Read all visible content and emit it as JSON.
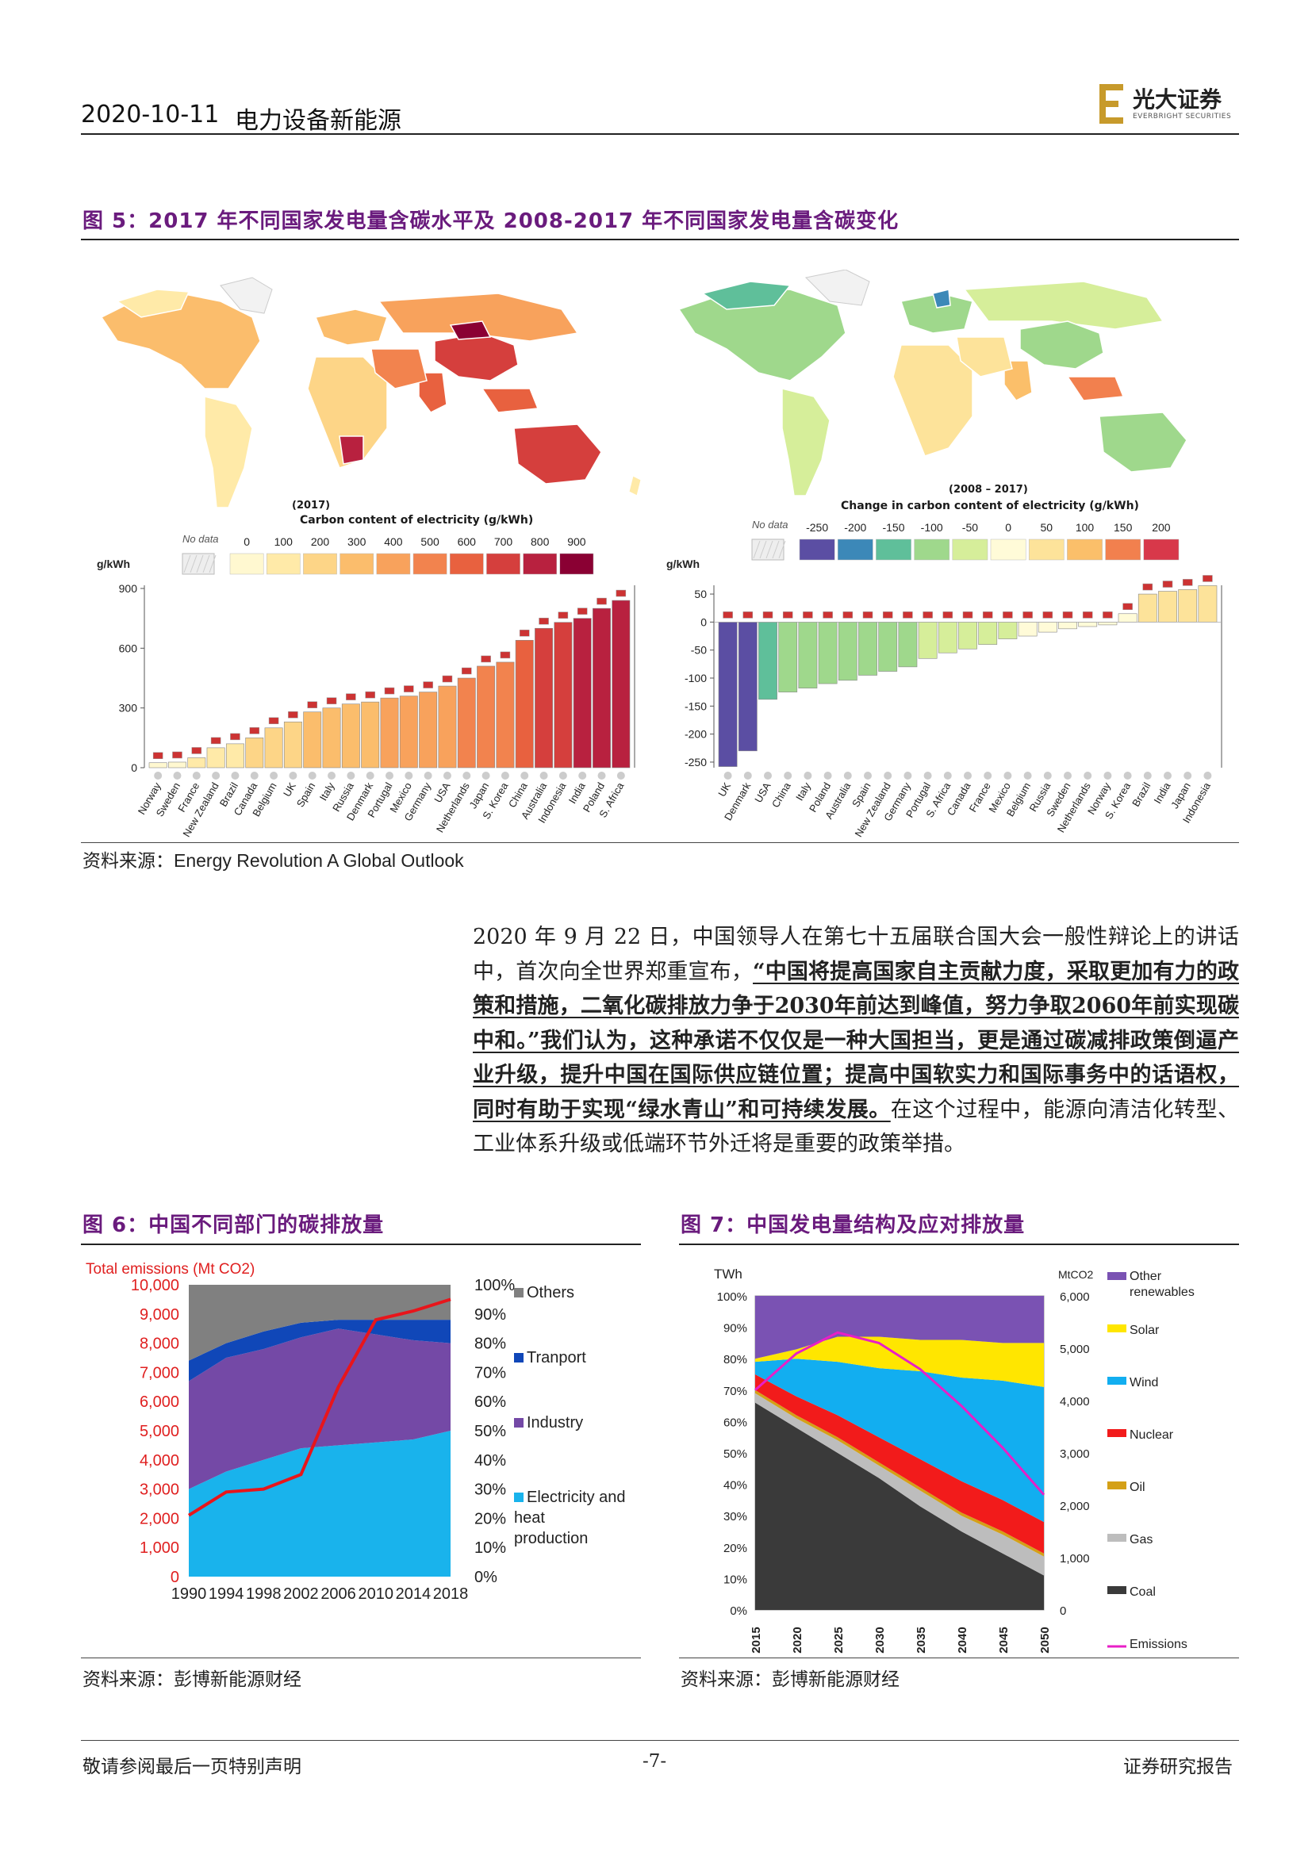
{
  "header": {
    "date": "2020-10-11",
    "category": "电力设备新能源",
    "logo_text": "光大证券",
    "logo_sub": "EVERBRIGHT SECURITIES"
  },
  "figure5": {
    "title": "图 5：2017 年不同国家发电量含碳水平及 2008-2017 年不同国家发电量含碳变化",
    "source": "资料来源：Energy Revolution A Global Outlook",
    "left": {
      "year_label": "(2017)",
      "legend_title": "Carbon content of electricity (g/kWh)",
      "no_data": "No data",
      "legend_ticks": [
        "0",
        "100",
        "200",
        "300",
        "400",
        "500",
        "600",
        "700",
        "800",
        "900"
      ],
      "legend_colors": [
        "#fff8d0",
        "#ffeaa8",
        "#fdd587",
        "#fbbd6c",
        "#f8a25c",
        "#f2834e",
        "#e8613f",
        "#d53f3d",
        "#b8213f",
        "#8a0033"
      ],
      "unit": "g/kWh",
      "y_ticks": [
        0,
        300,
        600,
        900
      ]
    },
    "right": {
      "year_label": "(2008 – 2017)",
      "legend_title": "Change in carbon content of electricity (g/kWh)",
      "no_data": "No data",
      "legend_ticks": [
        "-250",
        "-200",
        "-150",
        "-100",
        "-50",
        "0",
        "50",
        "100",
        "150",
        "200"
      ],
      "legend_colors": [
        "#5b4ea3",
        "#3c88b8",
        "#5fbf9a",
        "#9fd88c",
        "#d6ee9a",
        "#fffbd8",
        "#fde39a",
        "#fbbf6a",
        "#f2804e",
        "#d8384a"
      ],
      "unit": "g/kWh",
      "y_ticks": [
        50,
        0,
        -50,
        -100,
        -150,
        -200,
        -250
      ]
    }
  },
  "paragraph": {
    "p1": "2020 年 9 月 22 日，中国领导人在第七十五届联合国大会一般性辩论上的讲话中，首次向全世界郑重宣布，",
    "p2": "“中国将提高国家自主贡献力度，采取更加有力的政策和措施，二氧化碳排放力争于2030年前达到峰值，努力争取2060年前实现碳中和。”我们认为，这种承诺不仅仅是一种大国担当，更是通过碳减排政策倒逼产业升级，提升中国在国际供应链位置；提高中国软实力和国际事务中的话语权，同时有助于实现“绿水青山”和可持续发展。",
    "p3": "在这个过程中，能源向清洁化转型、工业体系升级或低端环节外迁将是重要的政策举措。"
  },
  "figure6": {
    "title": "图 6：中国不同部门的碳排放量",
    "source": "资料来源：彭博新能源财经",
    "y_title": "Total emissions (Mt CO2)",
    "legend": [
      "Others",
      "Tranport",
      "Industry",
      "Electricity and heat production"
    ]
  },
  "figure7": {
    "title": "图 7：中国发电量结构及应对排放量",
    "source": "资料来源：彭博新能源财经",
    "left_unit": "TWh",
    "right_unit": "MtCO2",
    "legend": [
      "Other renewables",
      "Solar",
      "Wind",
      "Nuclear",
      "Oil",
      "Gas",
      "Coal",
      "Emissions"
    ]
  },
  "chart_data": [
    {
      "type": "bar",
      "title": "",
      "ylabel": "g/kWh",
      "ylim": [
        0,
        900
      ],
      "categories": [
        "Norway",
        "Sweden",
        "France",
        "New Zealand",
        "Brazil",
        "Canada",
        "Belgium",
        "UK",
        "Spain",
        "Italy",
        "Russia",
        "Denmark",
        "Portugal",
        "Mexico",
        "Germany",
        "USA",
        "Netherlands",
        "Japan",
        "S. Korea",
        "China",
        "Australia",
        "Indonesia",
        "India",
        "Poland",
        "S. Africa"
      ],
      "values": [
        25,
        28,
        50,
        100,
        120,
        150,
        200,
        230,
        280,
        300,
        320,
        330,
        350,
        360,
        380,
        410,
        450,
        510,
        530,
        640,
        700,
        730,
        750,
        800,
        840
      ]
    },
    {
      "type": "bar",
      "title": "",
      "ylabel": "g/kWh",
      "ylim": [
        -260,
        60
      ],
      "categories": [
        "UK",
        "Denmark",
        "USA",
        "China",
        "Italy",
        "Poland",
        "Australia",
        "Spain",
        "New Zealand",
        "Germany",
        "Portugal",
        "S. Africa",
        "Canada",
        "France",
        "Mexico",
        "Belgium",
        "Russia",
        "Sweden",
        "Netherlands",
        "Norway",
        "S. Korea",
        "Brazil",
        "India",
        "Japan",
        "Indonesia"
      ],
      "values": [
        -258,
        -230,
        -138,
        -125,
        -118,
        -110,
        -104,
        -95,
        -88,
        -80,
        -65,
        -55,
        -48,
        -40,
        -30,
        -25,
        -18,
        -12,
        -8,
        -5,
        15,
        50,
        55,
        58,
        65
      ]
    },
    {
      "type": "area",
      "title": "",
      "ylabel": "Total emissions (Mt CO2)",
      "x": [
        1990,
        1994,
        1998,
        2002,
        2006,
        2010,
        2014,
        2018
      ],
      "ylim": [
        0,
        10000
      ],
      "series": [
        {
          "name": "Electricity and heat production",
          "values": [
            30,
            36,
            40,
            44,
            45,
            46,
            47,
            50
          ]
        },
        {
          "name": "Industry",
          "values": [
            37,
            39,
            38,
            38,
            40,
            37,
            34,
            30
          ]
        },
        {
          "name": "Tranport",
          "values": [
            7,
            5,
            6,
            5,
            3,
            5,
            7,
            8
          ]
        },
        {
          "name": "Others",
          "values": [
            26,
            20,
            16,
            13,
            12,
            12,
            12,
            12
          ]
        }
      ],
      "line": {
        "name": "Total emissions",
        "values": [
          2100,
          2900,
          3000,
          3500,
          6500,
          8800,
          9100,
          9500
        ]
      }
    },
    {
      "type": "area",
      "title": "",
      "ylabel": "TWh",
      "x": [
        2015,
        2020,
        2025,
        2030,
        2035,
        2040,
        2045,
        2050
      ],
      "ylim": [
        0,
        100
      ],
      "series": [
        {
          "name": "Coal",
          "values": [
            66,
            58,
            50,
            42,
            33,
            25,
            18,
            11
          ]
        },
        {
          "name": "Gas",
          "values": [
            3,
            3,
            4,
            4,
            5,
            5,
            6,
            6
          ]
        },
        {
          "name": "Oil",
          "values": [
            1,
            1,
            1,
            1,
            1,
            1,
            1,
            1
          ]
        },
        {
          "name": "Nuclear",
          "values": [
            5,
            6,
            7,
            8,
            9,
            10,
            10,
            10
          ]
        },
        {
          "name": "Wind",
          "values": [
            4,
            12,
            17,
            22,
            28,
            33,
            38,
            43
          ]
        },
        {
          "name": "Solar",
          "values": [
            1,
            3,
            8,
            10,
            10,
            12,
            12,
            14
          ]
        },
        {
          "name": "Other renewables",
          "values": [
            20,
            17,
            13,
            13,
            14,
            14,
            15,
            15
          ]
        }
      ],
      "line": {
        "name": "Emissions",
        "values": [
          4200,
          4900,
          5300,
          5100,
          4600,
          3900,
          3100,
          2200
        ],
        "ylim": [
          0,
          6000
        ]
      }
    }
  ],
  "footer": {
    "left": "敬请参阅最后一页特别声明",
    "center": "-7-",
    "right": "证券研究报告"
  }
}
